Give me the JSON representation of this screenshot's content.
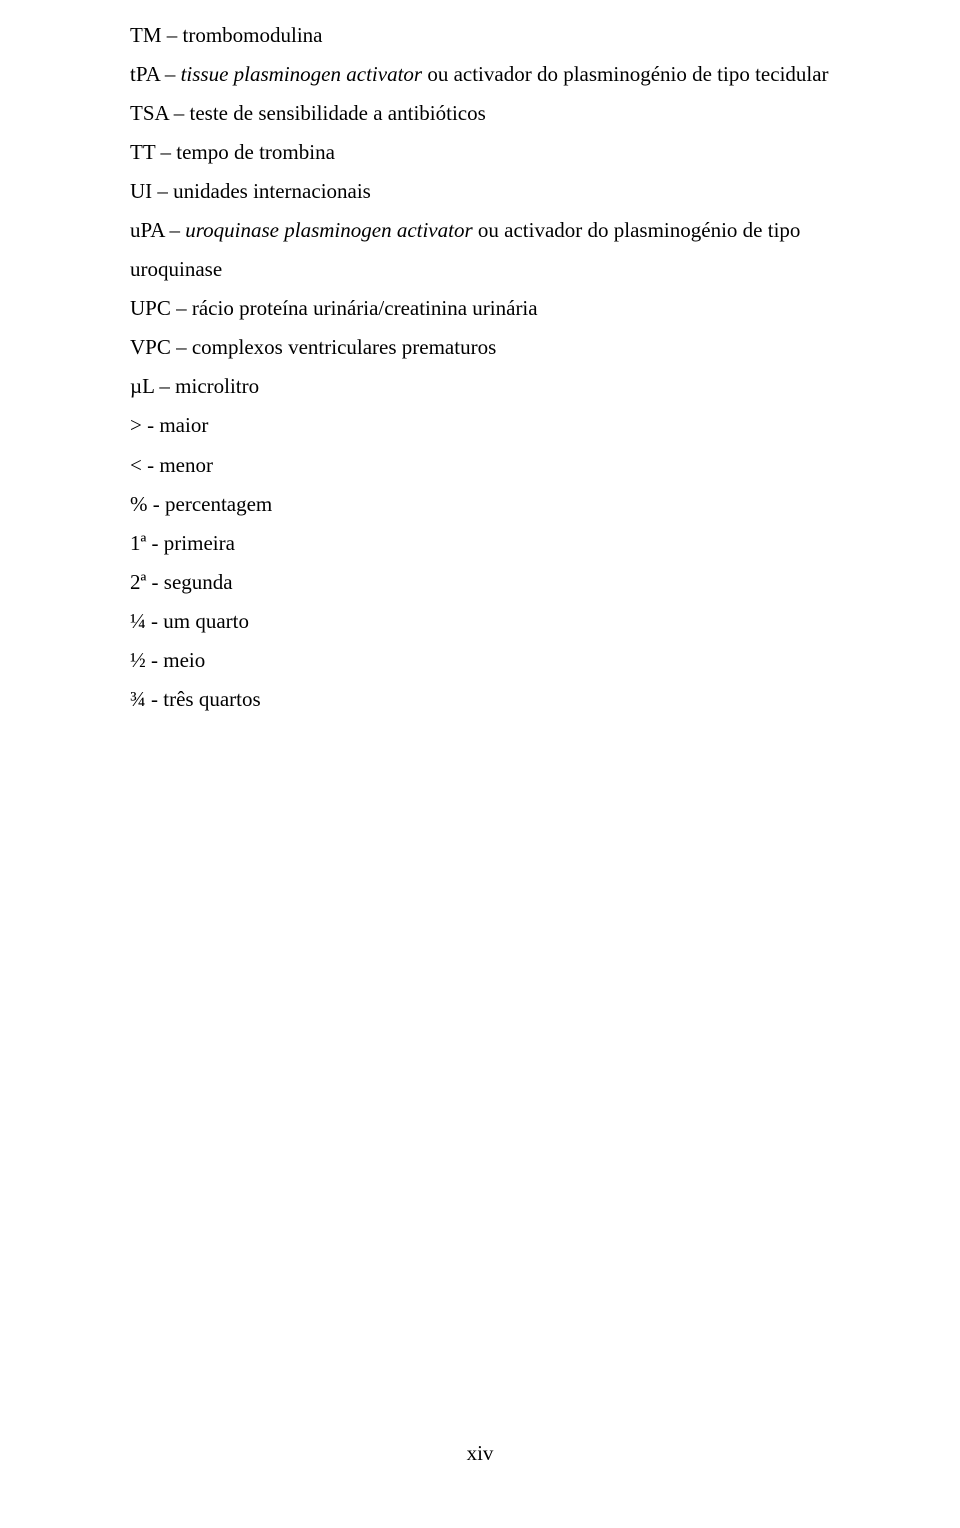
{
  "entries": [
    {
      "abbr": "TM",
      "sep": " – ",
      "def": "trombomodulina"
    },
    {
      "abbr": "tPA",
      "sep": " –  ",
      "def_italic": "tissue plasminogen activator",
      "def_after": " ou activador do plasminogénio de tipo tecidular"
    },
    {
      "abbr": "TSA",
      "sep": " – ",
      "def": "teste de sensibilidade a antibióticos"
    },
    {
      "abbr": "TT",
      "sep": " – ",
      "def": "tempo de trombina"
    },
    {
      "abbr": "UI",
      "sep": " – ",
      "def": "unidades internacionais"
    },
    {
      "abbr": "uPA",
      "sep": " – ",
      "def_italic": "uroquinase plasminogen activator",
      "def_after": " ou activador do plasminogénio de tipo uroquinase"
    },
    {
      "abbr": "UPC",
      "sep": " – ",
      "def": "rácio proteína urinária/creatinina urinária"
    },
    {
      "abbr": "VPC",
      "sep": " – ",
      "def": "complexos ventriculares prematuros"
    },
    {
      "abbr": "µL",
      "sep": " – ",
      "def": "microlitro"
    },
    {
      "abbr": ">",
      "sep": " - ",
      "def": "maior"
    },
    {
      "abbr": "<",
      "sep": " - ",
      "def": "menor"
    },
    {
      "abbr": "%",
      "sep": " - ",
      "def": "percentagem"
    },
    {
      "abbr": "1ª",
      "sep": " - ",
      "def": "primeira"
    },
    {
      "abbr": "2ª",
      "sep": " - ",
      "def": "segunda"
    },
    {
      "abbr": "¼",
      "sep": " - ",
      "def": "um quarto"
    },
    {
      "abbr": "½",
      "sep": " - ",
      "def": "meio"
    },
    {
      "abbr": "¾",
      "sep": " - ",
      "def": "três quartos"
    }
  ],
  "page_number": "xiv",
  "style": {
    "font_family": "Times New Roman",
    "font_size_pt": 16,
    "text_color": "#000000",
    "background_color": "#ffffff"
  }
}
